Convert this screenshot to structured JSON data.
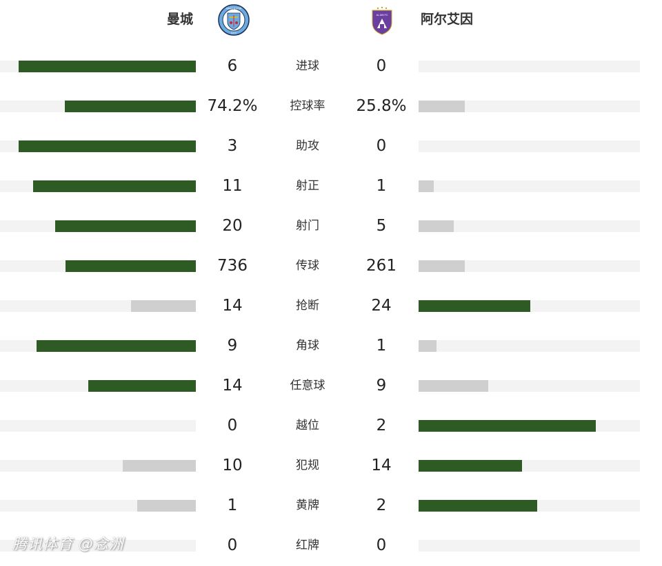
{
  "header": {
    "home_team": "曼城",
    "away_team": "阿尔艾因",
    "home_logo_text_top": "MANCHESTER",
    "home_logo_text_bottom": "CITY",
    "away_logo_text": "AL AIN FC"
  },
  "colors": {
    "winner_bar": "#2e5a23",
    "loser_bar": "#cfcfcf",
    "track": "#f3f3f3",
    "home_logo_blue": "#6cabdd",
    "away_logo_purple": "#6b3fa0"
  },
  "stats": [
    {
      "label": "进球",
      "home": "6",
      "away": "0",
      "home_frac": 0.905,
      "away_frac": 0.0,
      "home_color": "winner_bar",
      "away_color": "loser_bar"
    },
    {
      "label": "控球率",
      "home": "74.2%",
      "away": "25.8%",
      "home_frac": 0.67,
      "away_frac": 0.21,
      "home_color": "winner_bar",
      "away_color": "loser_bar"
    },
    {
      "label": "助攻",
      "home": "3",
      "away": "0",
      "home_frac": 0.905,
      "away_frac": 0.0,
      "home_color": "winner_bar",
      "away_color": "loser_bar"
    },
    {
      "label": "射正",
      "home": "11",
      "away": "1",
      "home_frac": 0.83,
      "away_frac": 0.07,
      "home_color": "winner_bar",
      "away_color": "loser_bar"
    },
    {
      "label": "射门",
      "home": "20",
      "away": "5",
      "home_frac": 0.72,
      "away_frac": 0.16,
      "home_color": "winner_bar",
      "away_color": "loser_bar"
    },
    {
      "label": "传球",
      "home": "736",
      "away": "261",
      "home_frac": 0.665,
      "away_frac": 0.21,
      "home_color": "winner_bar",
      "away_color": "loser_bar"
    },
    {
      "label": "抢断",
      "home": "14",
      "away": "24",
      "home_frac": 0.33,
      "away_frac": 0.505,
      "home_color": "loser_bar",
      "away_color": "winner_bar"
    },
    {
      "label": "角球",
      "home": "9",
      "away": "1",
      "home_frac": 0.815,
      "away_frac": 0.08,
      "home_color": "winner_bar",
      "away_color": "loser_bar"
    },
    {
      "label": "任意球",
      "home": "14",
      "away": "9",
      "home_frac": 0.55,
      "away_frac": 0.315,
      "home_color": "winner_bar",
      "away_color": "loser_bar"
    },
    {
      "label": "越位",
      "home": "0",
      "away": "2",
      "home_frac": 0.0,
      "away_frac": 0.8,
      "home_color": "loser_bar",
      "away_color": "winner_bar"
    },
    {
      "label": "犯规",
      "home": "10",
      "away": "14",
      "home_frac": 0.375,
      "away_frac": 0.467,
      "home_color": "loser_bar",
      "away_color": "winner_bar"
    },
    {
      "label": "黄牌",
      "home": "1",
      "away": "2",
      "home_frac": 0.3,
      "away_frac": 0.535,
      "home_color": "loser_bar",
      "away_color": "winner_bar"
    },
    {
      "label": "红牌",
      "home": "0",
      "away": "0",
      "home_frac": 0.0,
      "away_frac": 0.0,
      "home_color": "loser_bar",
      "away_color": "loser_bar"
    }
  ],
  "watermark": "腾讯体育 @念洲"
}
